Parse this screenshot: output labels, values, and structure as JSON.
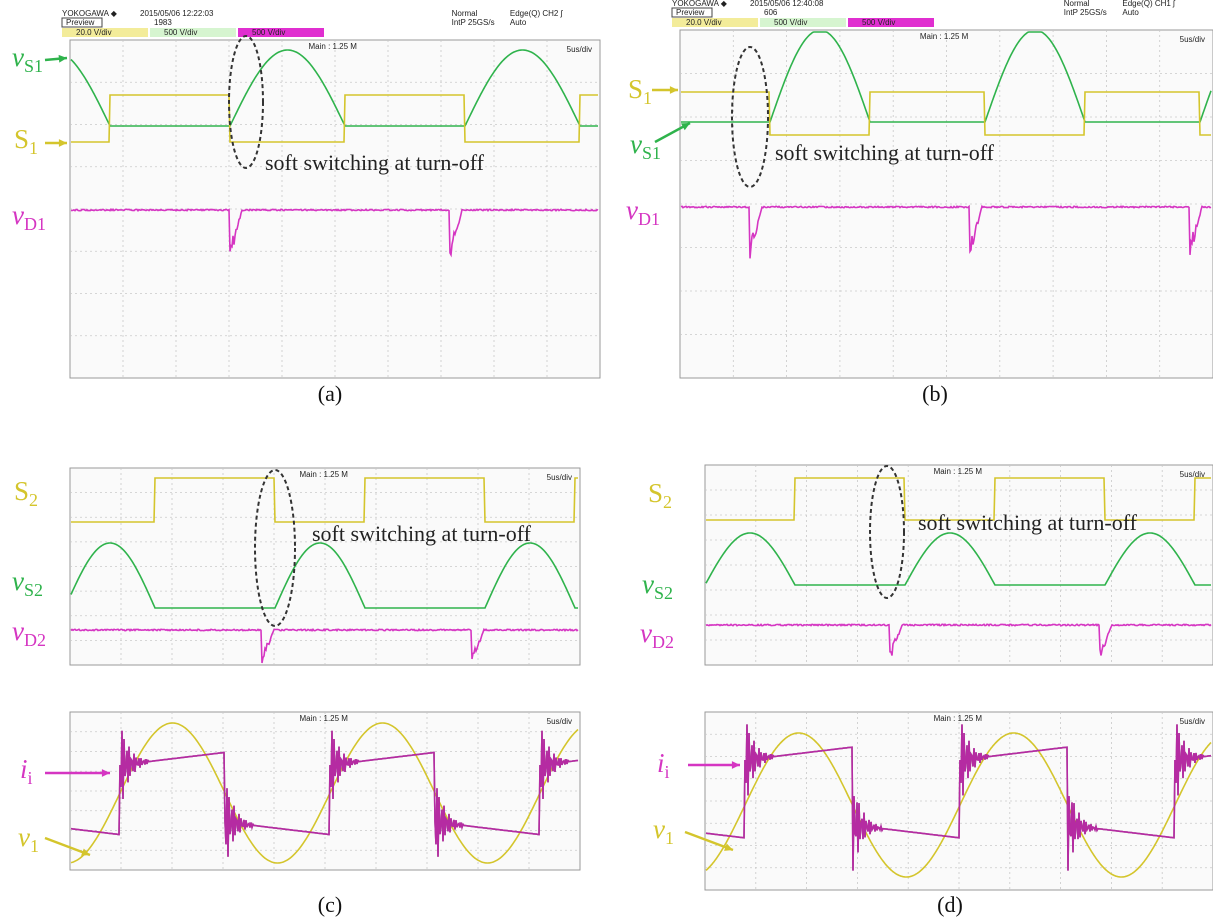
{
  "panels": [
    {
      "caption": "(a)",
      "scopes": [
        {
          "header": {
            "brand": "YOKOGAWA ◆",
            "timestamp": "2015/05/06 12:22:03",
            "mode": "Preview",
            "count": "1983",
            "acquisition": "Normal",
            "rate": "IntP 25GS/s",
            "trigger": "Edge(Q) CH2 ʃ",
            "trigger_mode": "Auto",
            "ch1": "20.0 V/div",
            "ch2": "500 V/div",
            "ch3": "500 V/div"
          },
          "main": "Main : 1.25 M",
          "timebase": "5us/div"
        }
      ],
      "labels": [
        {
          "main": "v",
          "sub": "S1"
        },
        {
          "main": "S",
          "sub": "1"
        },
        {
          "main": "v",
          "sub": "D1"
        }
      ],
      "annotation": "soft switching at turn-off"
    },
    {
      "caption": "(b)",
      "scopes": [
        {
          "header": {
            "brand": "YOKOGAWA ◆",
            "timestamp": "2015/05/06 12:40:08",
            "mode": "Preview",
            "count": "606",
            "acquisition": "Normal",
            "rate": "IntP 25GS/s",
            "trigger": "Edge(Q) CH1 ʃ",
            "trigger_mode": "Auto",
            "ch1": "20.0 V/div",
            "ch2": "500 V/div",
            "ch3": "500 V/div"
          },
          "main": "Main : 1.25 M",
          "timebase": "5us/div"
        }
      ],
      "labels": [
        {
          "main": "S",
          "sub": "1"
        },
        {
          "main": "v",
          "sub": "S1"
        },
        {
          "main": "v",
          "sub": "D1"
        }
      ],
      "annotation": "soft switching at turn-off"
    },
    {
      "caption": "(c)",
      "scopes": [
        {
          "main": "Main : 1.25 M",
          "timebase": "5us/div"
        },
        {
          "main": "Main : 1.25 M",
          "timebase": "5us/div"
        }
      ],
      "labels": [
        {
          "main": "S",
          "sub": "2"
        },
        {
          "main": "v",
          "sub": "S2"
        },
        {
          "main": "v",
          "sub": "D2"
        },
        {
          "main": "i",
          "sub": "i"
        },
        {
          "main": "v",
          "sub": "1"
        }
      ],
      "annotation": "soft switching at turn-off"
    },
    {
      "caption": "(d)",
      "scopes": [
        {
          "main": "Main : 1.25 M",
          "timebase": "5us/div"
        },
        {
          "main": "Main : 1.25 M",
          "timebase": "5us/div"
        }
      ],
      "labels": [
        {
          "main": "S",
          "sub": "2"
        },
        {
          "main": "v",
          "sub": "S2"
        },
        {
          "main": "v",
          "sub": "D2"
        },
        {
          "main": "i",
          "sub": "i"
        },
        {
          "main": "v",
          "sub": "1"
        }
      ],
      "annotation": "soft switching at turn-off"
    }
  ]
}
